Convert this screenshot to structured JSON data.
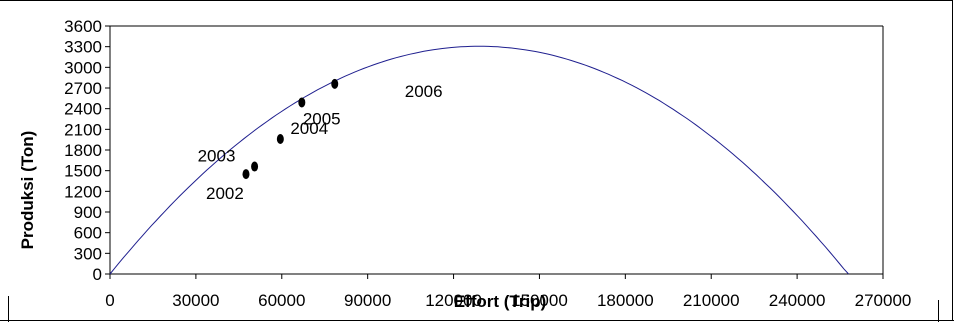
{
  "chart_data": {
    "type": "scatter",
    "title": "",
    "xlabel": "Effort (Trip)",
    "ylabel": "Produksi (Ton)",
    "xlim": [
      0,
      270000
    ],
    "ylim": [
      0,
      3600
    ],
    "x_ticks": [
      "0",
      "30000",
      "60000",
      "90000",
      "120000",
      "150000",
      "180000",
      "210000",
      "240000",
      "270000"
    ],
    "y_ticks": [
      "0",
      "300",
      "600",
      "900",
      "1200",
      "1500",
      "1800",
      "2100",
      "2400",
      "2700",
      "3000",
      "3300",
      "3600"
    ],
    "grid": false,
    "legend": "none",
    "curve": {
      "type": "line",
      "color": "#1f1f8f",
      "a": 0.0513,
      "b": 1.99e-07,
      "x_range": [
        0,
        258000
      ]
    },
    "points": [
      {
        "label": "2002",
        "x": 47500,
        "y": 1450
      },
      {
        "label": "2003",
        "x": 50500,
        "y": 1560
      },
      {
        "label": "2004",
        "x": 59500,
        "y": 1960
      },
      {
        "label": "2005",
        "x": 67000,
        "y": 2490
      },
      {
        "label": "2006",
        "x": 78500,
        "y": 2760
      }
    ],
    "point_color": "#000000"
  }
}
